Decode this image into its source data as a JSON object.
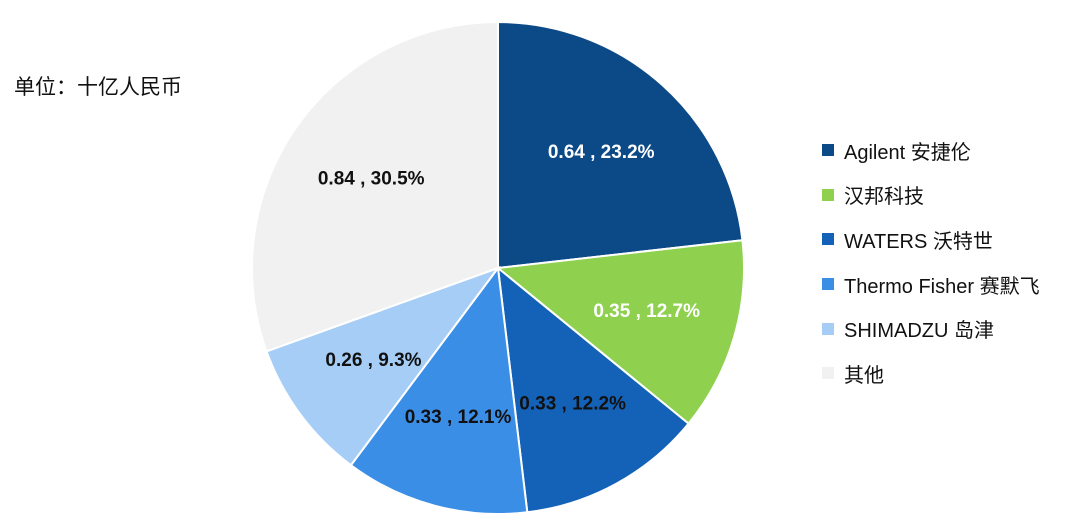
{
  "unit_label": "单位：十亿人民币",
  "chart_data": {
    "type": "pie",
    "title": "",
    "unit": "单位：十亿人民币",
    "legend_position": "right",
    "slices": [
      {
        "name": "Agilent 安捷伦",
        "value": 0.64,
        "percent": 23.2,
        "label": "0.64 , 23.2%",
        "color": "#0c4a87",
        "label_color": "#ffffff"
      },
      {
        "name": "汉邦科技",
        "value": 0.35,
        "percent": 12.7,
        "label": "0.35 , 12.7%",
        "color": "#8fd14f",
        "label_color": "#ffffff"
      },
      {
        "name": "WATERS 沃特世",
        "value": 0.33,
        "percent": 12.2,
        "label": "0.33 , 12.2%",
        "color": "#1462b8",
        "label_color": "#111111"
      },
      {
        "name": "Thermo Fisher 赛默飞",
        "value": 0.33,
        "percent": 12.1,
        "label": "0.33 , 12.1%",
        "color": "#3b8ee6",
        "label_color": "#111111"
      },
      {
        "name": "SHIMADZU 岛津",
        "value": 0.26,
        "percent": 9.3,
        "label": "0.26 , 9.3%",
        "color": "#a6cdf5",
        "label_color": "#111111"
      },
      {
        "name": "其他",
        "value": 0.84,
        "percent": 30.5,
        "label": "0.84 , 30.5%",
        "color": "#f1f1f1",
        "label_color": "#111111"
      }
    ]
  }
}
